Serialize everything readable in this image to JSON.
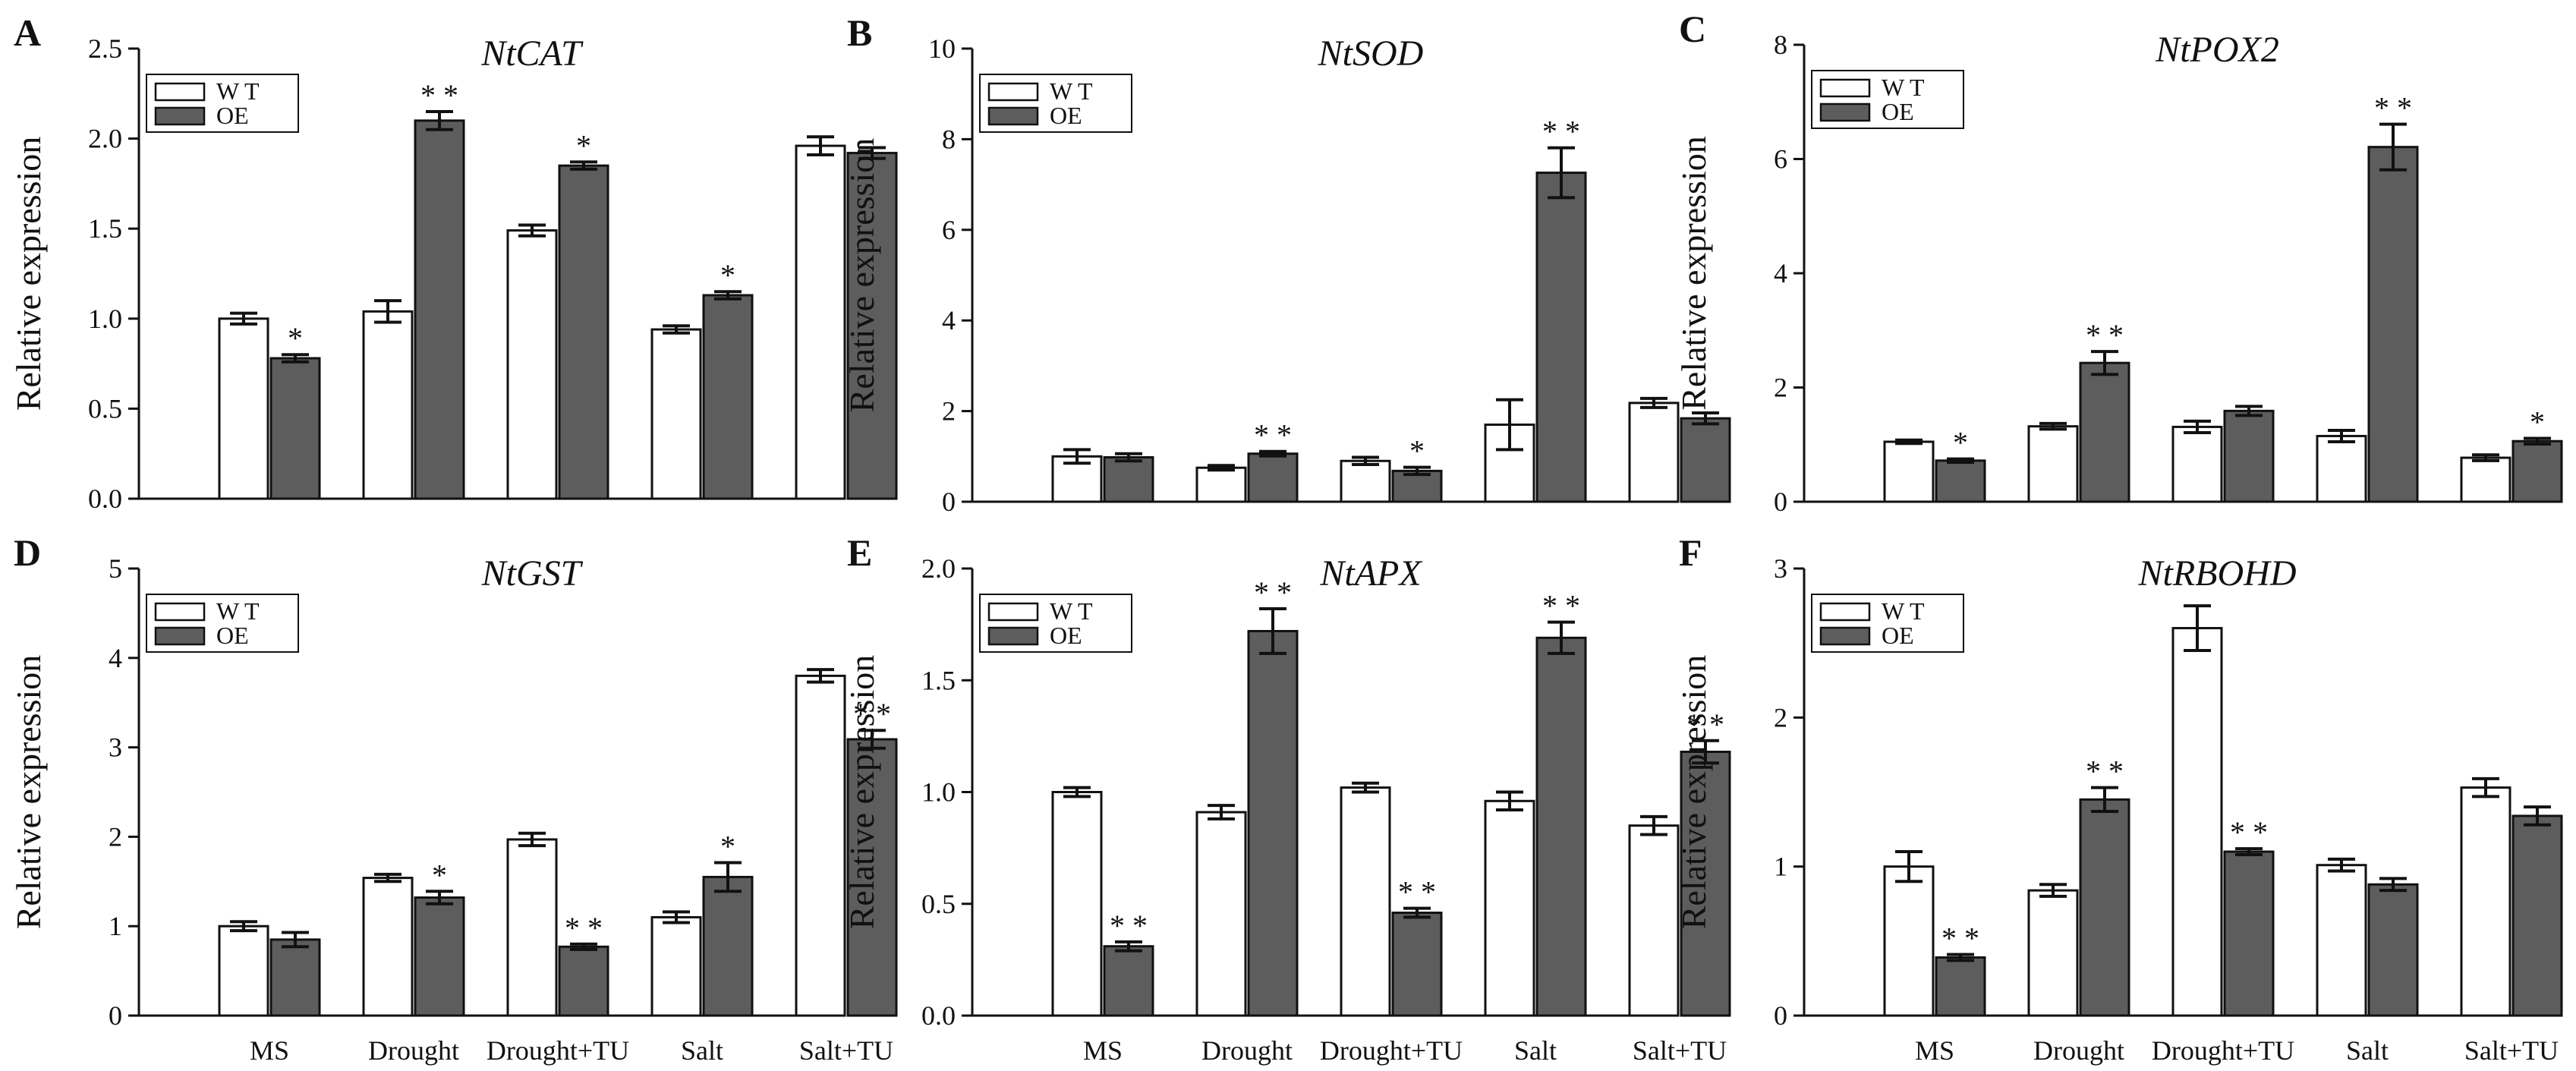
{
  "colors": {
    "wt": "#ffffff",
    "oe": "#5d5d5d",
    "stroke": "#111111"
  },
  "legend": {
    "wt": "W T",
    "oe": "OE"
  },
  "categories": [
    "MS",
    "Drought",
    "Drought+TU",
    "Salt",
    "Salt+TU"
  ],
  "ylabel": "Relative expression",
  "chart_data": [
    {
      "type": "bar",
      "panel": "A",
      "title": "NtCAT",
      "categories": [
        "MS",
        "Drought",
        "Drought+TU",
        "Salt",
        "Salt+TU"
      ],
      "ylabel": "Relative expression",
      "ylim": [
        0,
        2.5
      ],
      "ticks": [
        "0.0",
        "0.5",
        "1.0",
        "1.5",
        "2.0",
        "2.5"
      ],
      "series": [
        {
          "name": "W T",
          "values": [
            1.0,
            1.04,
            1.49,
            0.94,
            1.96
          ],
          "err": [
            0.03,
            0.06,
            0.03,
            0.02,
            0.05
          ],
          "sig": [
            "",
            "",
            "",
            "",
            ""
          ]
        },
        {
          "name": "OE",
          "values": [
            0.78,
            2.1,
            1.85,
            1.13,
            1.92
          ],
          "err": [
            0.02,
            0.05,
            0.02,
            0.02,
            0.03
          ],
          "sig": [
            "*",
            "* *",
            "*",
            "*",
            ""
          ]
        }
      ]
    },
    {
      "type": "bar",
      "panel": "B",
      "title": "NtSOD",
      "categories": [
        "MS",
        "Drought",
        "Drought+TU",
        "Salt",
        "Salt+TU"
      ],
      "ylabel": "Relative expression",
      "ylim": [
        0,
        10
      ],
      "ticks": [
        "0",
        "2",
        "4",
        "6",
        "8",
        "10"
      ],
      "series": [
        {
          "name": "W T",
          "values": [
            1.0,
            0.75,
            0.9,
            1.7,
            2.18
          ],
          "err": [
            0.15,
            0.05,
            0.08,
            0.55,
            0.1
          ],
          "sig": [
            "",
            "",
            "",
            "",
            ""
          ]
        },
        {
          "name": "OE",
          "values": [
            0.98,
            1.06,
            0.68,
            7.26,
            1.84
          ],
          "err": [
            0.08,
            0.05,
            0.08,
            0.55,
            0.12
          ],
          "sig": [
            "",
            "* *",
            "*",
            "* *",
            ""
          ]
        }
      ]
    },
    {
      "type": "bar",
      "panel": "C",
      "title": "NtPOX2",
      "categories": [
        "MS",
        "Drought",
        "Drought+TU",
        "Salt",
        "Salt+TU"
      ],
      "ylabel": "Relative expression",
      "ylim": [
        0,
        8
      ],
      "ticks": [
        "0",
        "2",
        "4",
        "6",
        "8"
      ],
      "series": [
        {
          "name": "W T",
          "values": [
            1.05,
            1.32,
            1.31,
            1.15,
            0.77
          ],
          "err": [
            0.03,
            0.05,
            0.1,
            0.1,
            0.05
          ],
          "sig": [
            "",
            "",
            "",
            "",
            ""
          ]
        },
        {
          "name": "OE",
          "values": [
            0.72,
            2.43,
            1.59,
            6.21,
            1.06
          ],
          "err": [
            0.03,
            0.2,
            0.08,
            0.4,
            0.05
          ],
          "sig": [
            "*",
            "* *",
            "",
            "* *",
            "*"
          ]
        }
      ]
    },
    {
      "type": "bar",
      "panel": "D",
      "title": "NtGST",
      "categories": [
        "MS",
        "Drought",
        "Drought+TU",
        "Salt",
        "Salt+TU"
      ],
      "ylabel": "Relative expression",
      "ylim": [
        0,
        5
      ],
      "ticks": [
        "0",
        "1",
        "2",
        "3",
        "4",
        "5"
      ],
      "series": [
        {
          "name": "W T",
          "values": [
            1.0,
            1.54,
            1.97,
            1.1,
            3.8
          ],
          "err": [
            0.05,
            0.04,
            0.07,
            0.06,
            0.07
          ],
          "sig": [
            "",
            "",
            "",
            "",
            ""
          ]
        },
        {
          "name": "OE",
          "values": [
            0.85,
            1.32,
            0.77,
            1.55,
            3.09
          ],
          "err": [
            0.08,
            0.07,
            0.03,
            0.16,
            0.1
          ],
          "sig": [
            "",
            "*",
            "* *",
            "*",
            "* *"
          ]
        }
      ]
    },
    {
      "type": "bar",
      "panel": "E",
      "title": "NtAPX",
      "categories": [
        "MS",
        "Drought",
        "Drought+TU",
        "Salt",
        "Salt+TU"
      ],
      "ylabel": "Relative expression",
      "ylim": [
        0,
        2.0
      ],
      "ticks": [
        "0.0",
        "0.5",
        "1.0",
        "1.5",
        "2.0"
      ],
      "series": [
        {
          "name": "W T",
          "values": [
            1.0,
            0.91,
            1.02,
            0.96,
            0.85
          ],
          "err": [
            0.02,
            0.03,
            0.02,
            0.04,
            0.04
          ],
          "sig": [
            "",
            "",
            "",
            "",
            ""
          ]
        },
        {
          "name": "OE",
          "values": [
            0.31,
            1.72,
            0.46,
            1.69,
            1.18
          ],
          "err": [
            0.02,
            0.1,
            0.02,
            0.07,
            0.05
          ],
          "sig": [
            "* *",
            "* *",
            "* *",
            "* *",
            "* *"
          ]
        }
      ]
    },
    {
      "type": "bar",
      "panel": "F",
      "title": "NtRBOHD",
      "categories": [
        "MS",
        "Drought",
        "Drought+TU",
        "Salt",
        "Salt+TU"
      ],
      "ylabel": "Relative expression",
      "ylim": [
        0,
        3
      ],
      "ticks": [
        "0",
        "1",
        "2",
        "3"
      ],
      "series": [
        {
          "name": "W T",
          "values": [
            1.0,
            0.84,
            2.6,
            1.01,
            1.53
          ],
          "err": [
            0.1,
            0.04,
            0.15,
            0.04,
            0.06
          ],
          "sig": [
            "",
            "",
            "",
            "",
            ""
          ]
        },
        {
          "name": "OE",
          "values": [
            0.39,
            1.45,
            1.1,
            0.88,
            1.34
          ],
          "err": [
            0.02,
            0.08,
            0.02,
            0.04,
            0.06
          ],
          "sig": [
            "* *",
            "* *",
            "* *",
            "",
            ""
          ]
        }
      ]
    }
  ]
}
